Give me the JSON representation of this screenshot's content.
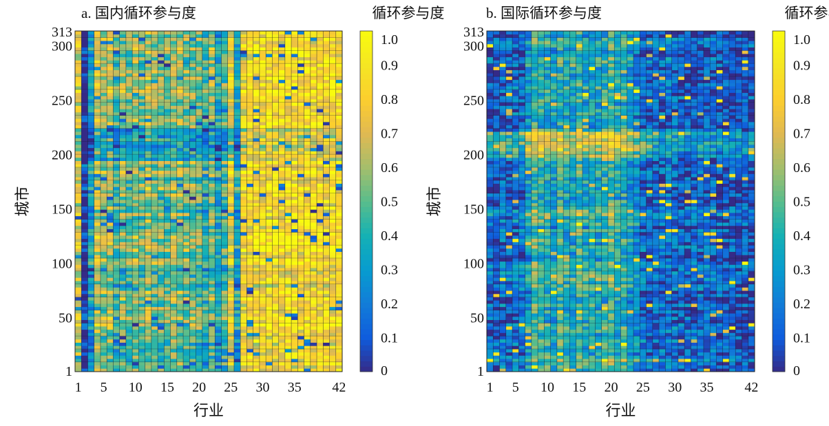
{
  "chart_data": [
    {
      "type": "heatmap",
      "title": "a. 国内循环参与度",
      "xlabel": "行业",
      "ylabel": "城市",
      "colorbar_label": "循环参与度",
      "x_range": [
        1,
        42
      ],
      "y_range": [
        1,
        313
      ],
      "x_ticks": [
        1,
        5,
        10,
        15,
        20,
        25,
        30,
        35,
        42
      ],
      "y_ticks": [
        1,
        50,
        100,
        150,
        200,
        250,
        300,
        313
      ],
      "colorbar_ticks": [
        "0",
        "0.1",
        "0.2",
        "0.3",
        "0.4",
        "0.5",
        "0.6",
        "0.7",
        "0.8",
        "0.9",
        "1.0"
      ],
      "colorbar_range": [
        0,
        1
      ],
      "colormap": "parula",
      "industry_base_values": [
        0.74,
        0.05,
        0.35,
        0.7,
        0.62,
        0.66,
        0.5,
        0.6,
        0.55,
        0.62,
        0.55,
        0.66,
        0.58,
        0.58,
        0.55,
        0.62,
        0.62,
        0.58,
        0.58,
        0.55,
        0.45,
        0.6,
        0.4,
        0.5,
        0.77,
        0.4,
        0.82,
        0.86,
        0.86,
        0.85,
        0.87,
        0.86,
        0.86,
        0.87,
        0.88,
        0.86,
        0.87,
        0.86,
        0.87,
        0.86,
        0.87,
        0.86
      ],
      "city_bands": [
        {
          "from": 195,
          "to": 225,
          "delta": -0.25
        },
        {
          "from": 75,
          "to": 95,
          "delta": -0.15
        },
        {
          "from": 130,
          "to": 160,
          "delta": -0.08
        },
        {
          "from": 1,
          "to": 35,
          "delta": -0.1
        }
      ]
    },
    {
      "type": "heatmap",
      "title": "b. 国际循环参与度",
      "xlabel": "行业",
      "ylabel": "城市",
      "colorbar_label": "循环参与度",
      "x_range": [
        1,
        42
      ],
      "y_range": [
        1,
        313
      ],
      "x_ticks": [
        1,
        5,
        10,
        15,
        20,
        25,
        30,
        35,
        42
      ],
      "y_ticks": [
        1,
        50,
        100,
        150,
        200,
        250,
        300,
        313
      ],
      "colorbar_ticks": [
        "0",
        "0.1",
        "0.2",
        "0.3",
        "0.4",
        "0.5",
        "0.6",
        "0.7",
        "0.8",
        "0.9",
        "1.0"
      ],
      "colorbar_range": [
        0,
        1
      ],
      "colormap": "parula",
      "industry_base_values": [
        0.12,
        0.1,
        0.14,
        0.12,
        0.15,
        0.14,
        0.3,
        0.45,
        0.4,
        0.38,
        0.3,
        0.42,
        0.35,
        0.33,
        0.45,
        0.35,
        0.33,
        0.35,
        0.4,
        0.48,
        0.38,
        0.4,
        0.3,
        0.25,
        0.14,
        0.15,
        0.13,
        0.14,
        0.18,
        0.15,
        0.12,
        0.12,
        0.12,
        0.14,
        0.15,
        0.12,
        0.11,
        0.1,
        0.1,
        0.09,
        0.09,
        0.08
      ],
      "city_bands": [
        {
          "from": 200,
          "to": 222,
          "delta": 0.3
        },
        {
          "from": 80,
          "to": 100,
          "delta": 0.12
        },
        {
          "from": 140,
          "to": 150,
          "delta": 0.1
        },
        {
          "from": 1,
          "to": 15,
          "delta": 0.1
        }
      ]
    }
  ]
}
